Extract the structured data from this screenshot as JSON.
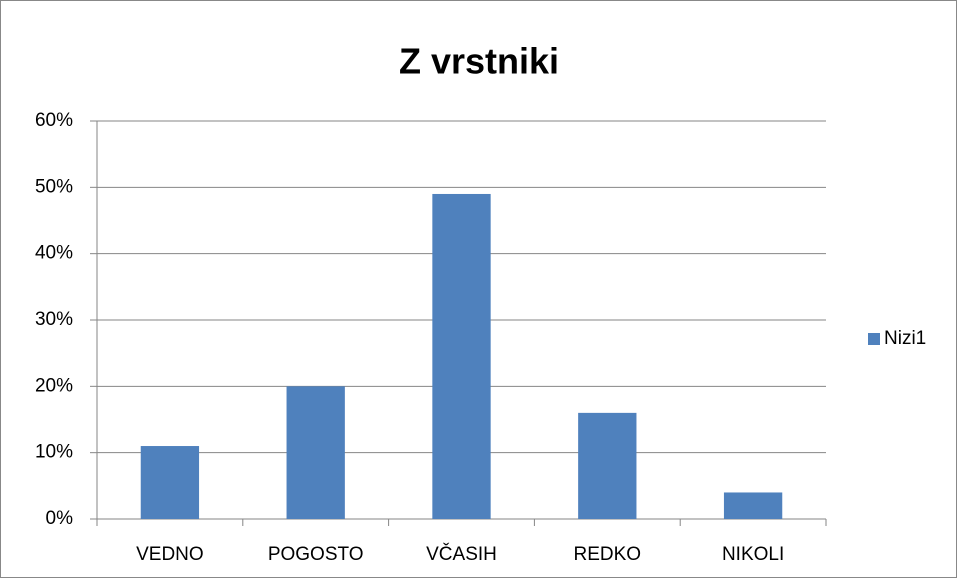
{
  "chart_data": {
    "type": "bar",
    "title": "Z vrstniki",
    "categories": [
      "VEDNO",
      "POGOSTO",
      "VČASIH",
      "REDKO",
      "NIKOLI"
    ],
    "series": [
      {
        "name": "Nizi1",
        "color": "#4f81bd",
        "values": [
          11,
          20,
          49,
          16,
          4
        ]
      }
    ],
    "ylim": [
      0,
      60
    ],
    "yticks": [
      {
        "value": 0,
        "label": "0%"
      },
      {
        "value": 10,
        "label": "10%"
      },
      {
        "value": 20,
        "label": "20%"
      },
      {
        "value": 30,
        "label": "30%"
      },
      {
        "value": 40,
        "label": "40%"
      },
      {
        "value": 50,
        "label": "50%"
      },
      {
        "value": 60,
        "label": "60%"
      }
    ],
    "grid": true,
    "legend": "right"
  }
}
